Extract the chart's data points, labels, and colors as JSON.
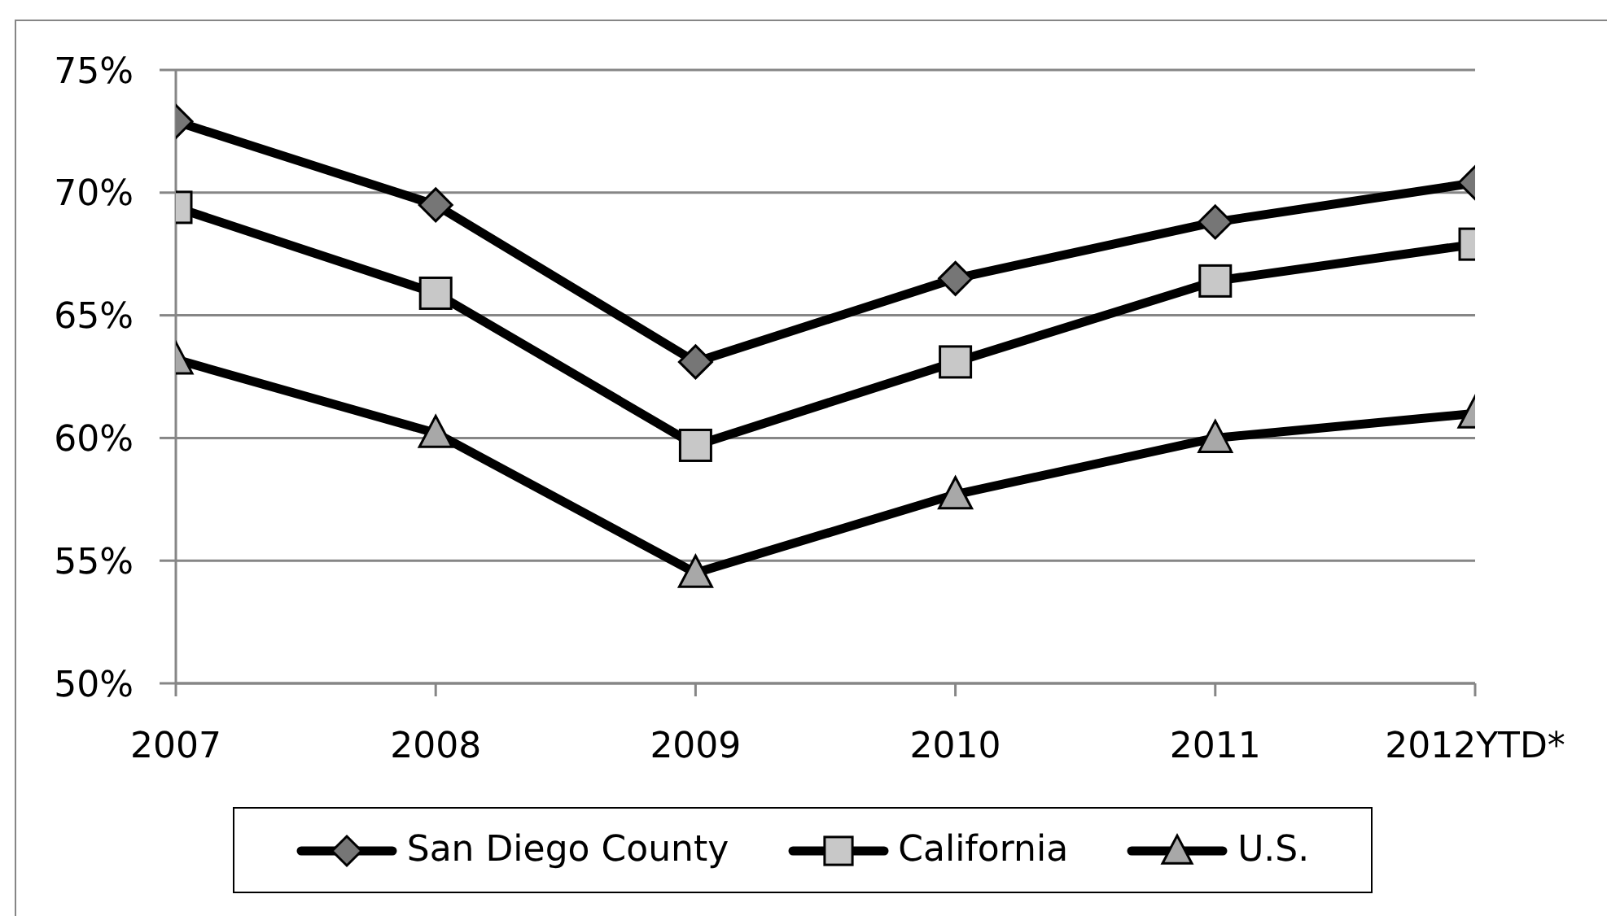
{
  "chart_data": {
    "type": "line",
    "categories": [
      "2007",
      "2008",
      "2009",
      "2010",
      "2011",
      "2012YTD*"
    ],
    "series": [
      {
        "name": "San Diego County",
        "color": "#000000",
        "marker": "diamond",
        "values": [
          72.9,
          69.5,
          63.1,
          66.5,
          68.8,
          70.4
        ]
      },
      {
        "name": "California",
        "color": "#000000",
        "marker": "square",
        "values": [
          69.4,
          65.9,
          59.7,
          63.1,
          66.4,
          67.9
        ]
      },
      {
        "name": "U.S.",
        "color": "#000000",
        "marker": "triangle",
        "values": [
          63.2,
          60.2,
          54.5,
          57.7,
          60.0,
          61.0
        ]
      }
    ],
    "ylim": [
      50,
      75
    ],
    "yticks": [
      {
        "value": 50,
        "label": "50%"
      },
      {
        "value": 55,
        "label": "55%"
      },
      {
        "value": 60,
        "label": "60%"
      },
      {
        "value": 65,
        "label": "65%"
      },
      {
        "value": 70,
        "label": "70%"
      },
      {
        "value": 75,
        "label": "75%"
      }
    ],
    "grid": "y",
    "legend": "bottom",
    "line_style": "solid"
  }
}
